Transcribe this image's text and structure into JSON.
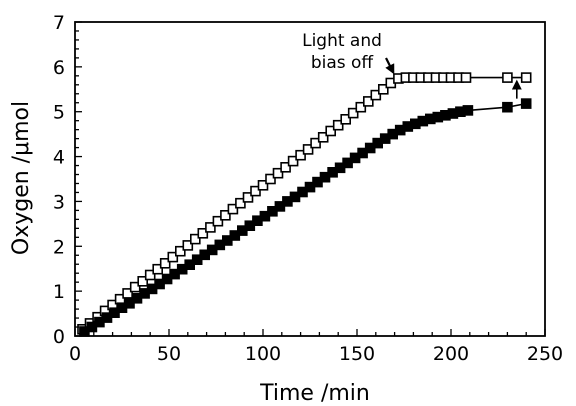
{
  "chart_data": {
    "type": "scatter",
    "title": "",
    "xlabel": "Time /min",
    "ylabel": "Oxygen /μmol",
    "xlim": [
      0,
      250
    ],
    "ylim": [
      0,
      7
    ],
    "xticks": [
      0,
      50,
      100,
      150,
      200,
      250
    ],
    "yticks": [
      0,
      1,
      2,
      3,
      4,
      5,
      6,
      7
    ],
    "grid": false,
    "legend": "none",
    "series": [
      {
        "marker": "open-square",
        "color": "#000000",
        "x": [
          4,
          8,
          12,
          16,
          20,
          24,
          28,
          32,
          36,
          40,
          44,
          48,
          52,
          56,
          60,
          64,
          68,
          72,
          76,
          80,
          84,
          88,
          92,
          96,
          100,
          104,
          108,
          112,
          116,
          120,
          124,
          128,
          132,
          136,
          140,
          144,
          148,
          152,
          156,
          160,
          164,
          168,
          172,
          176,
          180,
          184,
          188,
          192,
          196,
          200,
          204,
          208,
          230,
          240
        ],
        "y": [
          0.15,
          0.28,
          0.42,
          0.56,
          0.69,
          0.82,
          0.95,
          1.09,
          1.22,
          1.36,
          1.49,
          1.62,
          1.76,
          1.89,
          2.02,
          2.16,
          2.29,
          2.42,
          2.56,
          2.69,
          2.83,
          2.96,
          3.09,
          3.23,
          3.36,
          3.5,
          3.63,
          3.76,
          3.9,
          4.03,
          4.16,
          4.3,
          4.43,
          4.57,
          4.7,
          4.83,
          4.97,
          5.1,
          5.23,
          5.37,
          5.5,
          5.64,
          5.74,
          5.76,
          5.76,
          5.76,
          5.76,
          5.76,
          5.76,
          5.76,
          5.76,
          5.76,
          5.76,
          5.76
        ]
      },
      {
        "marker": "filled-square",
        "color": "#000000",
        "x": [
          5,
          9,
          13,
          17,
          21,
          25,
          29,
          33,
          37,
          41,
          45,
          49,
          53,
          57,
          61,
          65,
          69,
          73,
          77,
          81,
          85,
          89,
          93,
          97,
          101,
          105,
          109,
          113,
          117,
          121,
          125,
          129,
          133,
          137,
          141,
          145,
          149,
          153,
          157,
          161,
          165,
          169,
          173,
          177,
          181,
          185,
          189,
          193,
          197,
          201,
          205,
          209,
          230,
          240
        ],
        "y": [
          0.1,
          0.2,
          0.31,
          0.41,
          0.52,
          0.63,
          0.73,
          0.84,
          0.95,
          1.05,
          1.16,
          1.27,
          1.38,
          1.49,
          1.59,
          1.7,
          1.81,
          1.92,
          2.03,
          2.13,
          2.24,
          2.35,
          2.46,
          2.57,
          2.67,
          2.78,
          2.89,
          3.0,
          3.1,
          3.21,
          3.32,
          3.43,
          3.54,
          3.65,
          3.75,
          3.86,
          3.97,
          4.08,
          4.19,
          4.3,
          4.4,
          4.5,
          4.59,
          4.67,
          4.73,
          4.79,
          4.84,
          4.88,
          4.92,
          4.96,
          5.0,
          5.03,
          5.1,
          5.18
        ]
      }
    ],
    "annotations": [
      {
        "text_lines": [
          "Light and",
          "bias off"
        ],
        "arrow_to": [
          172,
          5.76
        ]
      }
    ],
    "difference_arrow": {
      "x": 235,
      "from": 5.18,
      "to": 5.76
    }
  }
}
